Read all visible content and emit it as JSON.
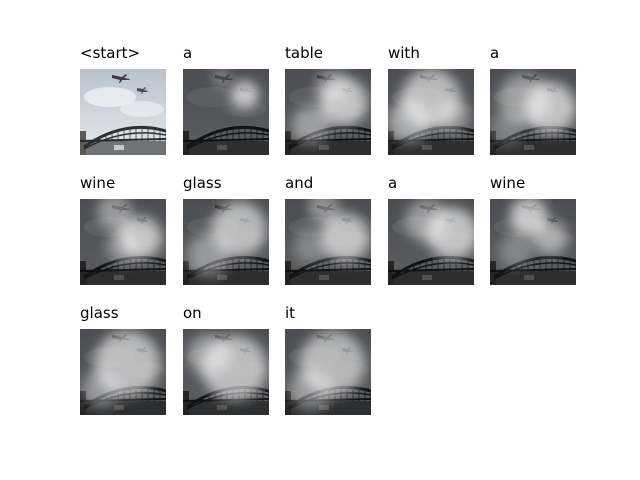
{
  "words": [
    "<start>",
    "a",
    "table",
    "with",
    "a",
    "wine",
    "glass",
    "and",
    "a",
    "wine",
    "glass",
    "on",
    "it"
  ],
  "blobs": [
    [],
    [
      [
        0.72,
        0.3,
        0.16,
        1.0
      ],
      [
        0.45,
        0.1,
        0.1,
        0.5
      ]
    ],
    [
      [
        0.68,
        0.38,
        0.28,
        0.9
      ],
      [
        0.3,
        0.65,
        0.22,
        0.6
      ],
      [
        0.55,
        0.2,
        0.2,
        0.5
      ]
    ],
    [
      [
        0.5,
        0.35,
        0.35,
        0.85
      ],
      [
        0.25,
        0.6,
        0.25,
        0.7
      ],
      [
        0.75,
        0.55,
        0.2,
        0.5
      ]
    ],
    [
      [
        0.7,
        0.45,
        0.3,
        0.9
      ],
      [
        0.4,
        0.35,
        0.3,
        0.6
      ],
      [
        0.2,
        0.7,
        0.2,
        0.35
      ]
    ],
    [
      [
        0.7,
        0.45,
        0.25,
        0.9
      ],
      [
        0.4,
        0.15,
        0.2,
        0.6
      ],
      [
        0.5,
        0.55,
        0.2,
        0.5
      ]
    ],
    [
      [
        0.65,
        0.35,
        0.32,
        0.85
      ],
      [
        0.3,
        0.65,
        0.25,
        0.55
      ]
    ],
    [
      [
        0.7,
        0.45,
        0.28,
        0.9
      ],
      [
        0.45,
        0.1,
        0.18,
        0.55
      ],
      [
        0.3,
        0.55,
        0.2,
        0.4
      ]
    ],
    [
      [
        0.75,
        0.4,
        0.3,
        0.9
      ],
      [
        0.45,
        0.25,
        0.25,
        0.6
      ]
    ],
    [
      [
        0.45,
        0.2,
        0.22,
        0.95
      ],
      [
        0.7,
        0.45,
        0.2,
        0.7
      ],
      [
        0.3,
        0.6,
        0.2,
        0.4
      ]
    ],
    [
      [
        0.55,
        0.4,
        0.38,
        0.85
      ],
      [
        0.25,
        0.7,
        0.22,
        0.55
      ]
    ],
    [
      [
        0.6,
        0.45,
        0.38,
        0.85
      ],
      [
        0.3,
        0.3,
        0.25,
        0.6
      ]
    ],
    [
      [
        0.55,
        0.4,
        0.38,
        0.8
      ],
      [
        0.3,
        0.7,
        0.25,
        0.55
      ]
    ]
  ]
}
